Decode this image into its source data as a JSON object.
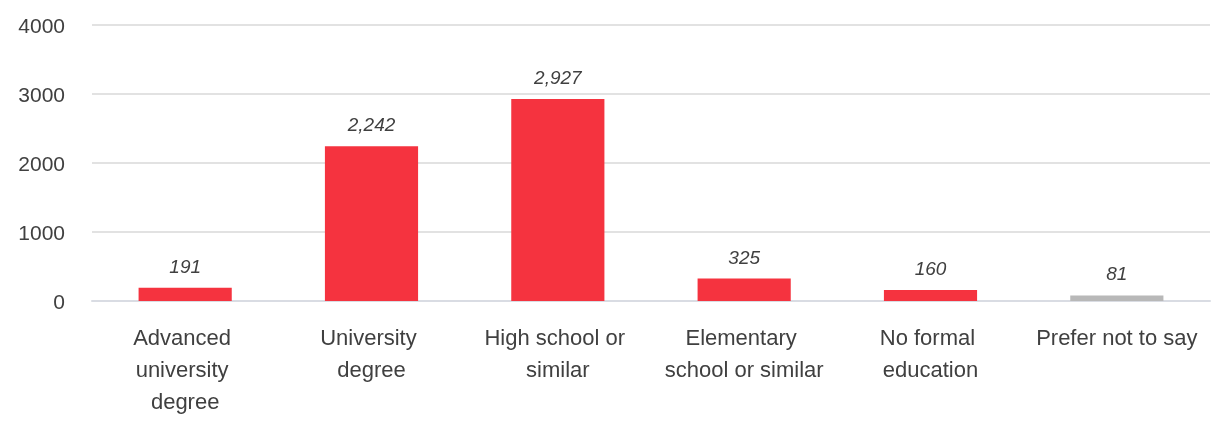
{
  "chart_data": {
    "type": "bar",
    "categories": [
      "Advanced university degree",
      "University degree",
      "High school or similar",
      "Elementary school or similar",
      "No formal education",
      "Prefer not to say"
    ],
    "values": [
      191,
      2242,
      2927,
      325,
      160,
      81
    ],
    "colors": [
      "#f5333f",
      "#f5333f",
      "#f5333f",
      "#f5333f",
      "#f5333f",
      "#b8b8b8"
    ],
    "value_labels": [
      "191",
      "2,242",
      "2,927",
      "325",
      "160",
      "81"
    ],
    "ylim": [
      0,
      4000
    ],
    "yticks": [
      0,
      1000,
      2000,
      3000,
      4000
    ],
    "grid": "y"
  }
}
